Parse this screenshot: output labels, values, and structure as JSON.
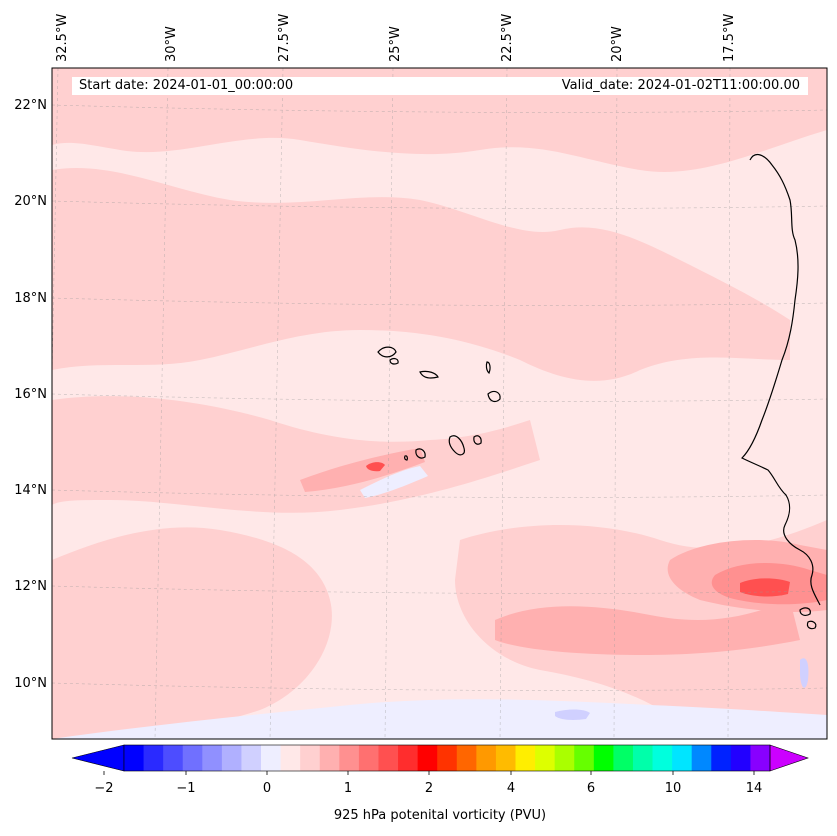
{
  "map": {
    "start_date": "Start date: 2024-01-01_00:00:00",
    "valid_date": "Valid_date: 2024-01-02T11:00:00.00",
    "longitude_labels": [
      "32.5°W",
      "30°W",
      "27.5°W",
      "25°W",
      "22.5°W",
      "20°W",
      "17.5°W"
    ],
    "latitude_labels": [
      "22°N",
      "20°N",
      "18°N",
      "16°N",
      "14°N",
      "12°N",
      "10°N"
    ],
    "colorbar": {
      "title": "925 hPa potenital vorticity (PVU)",
      "tick_labels": [
        "−2",
        "−1",
        "0",
        "1",
        "2",
        "4",
        "6",
        "10",
        "14"
      ],
      "colors": [
        "#0000ff",
        "#2a2aff",
        "#4d4dff",
        "#7070ff",
        "#9090ff",
        "#b0b0ff",
        "#d0d0ff",
        "#eeeeff",
        "#ffe8e8",
        "#ffd0d0",
        "#ffb0b0",
        "#ff9090",
        "#ff7070",
        "#ff5050",
        "#ff2d2d",
        "#ff0000",
        "#ff3300",
        "#ff6600",
        "#ff9900",
        "#ffbb00",
        "#ffee00",
        "#ddff00",
        "#aaff00",
        "#66ff00",
        "#00ff00",
        "#00ff66",
        "#00ffaa",
        "#00ffdd",
        "#00e5ff",
        "#0088ff",
        "#0022ff",
        "#2200ff",
        "#8800ff"
      ],
      "under_color": "#0000ff",
      "over_color": "#cc00ff"
    },
    "field_colors": {
      "base": "#ffe8e8",
      "light": "#ffd0d0",
      "medium": "#ffb0b0",
      "strong": "#ff9090",
      "peak": "#ff5050",
      "negative": "#eeeeff",
      "negative_strong": "#d0d0ff"
    }
  }
}
